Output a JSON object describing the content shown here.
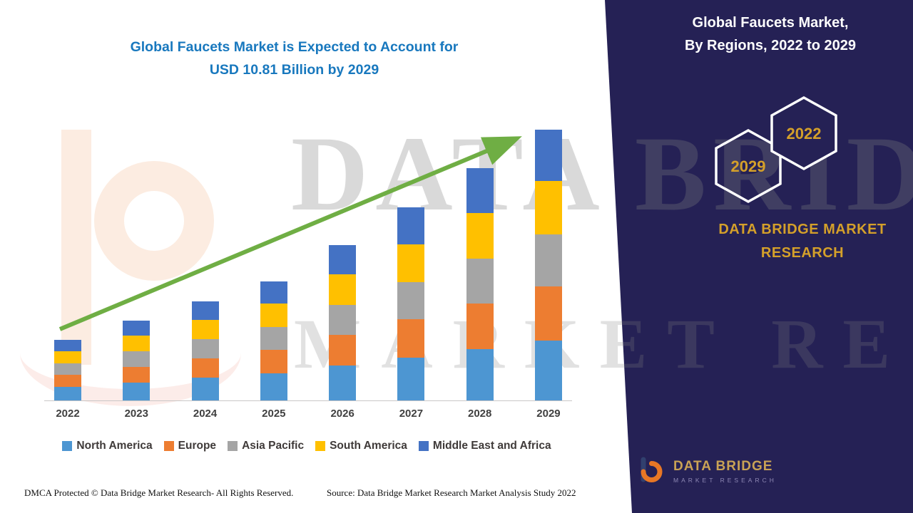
{
  "left_panel": {
    "title_line1": "Global Faucets Market is Expected to Account for",
    "title_line2": "USD 10.81 Billion by 2029",
    "footer_dmca": "DMCA Protected © Data Bridge Market Research- All Rights Reserved.",
    "footer_source": "Source: Data Bridge Market Research Market Analysis Study 2022"
  },
  "right_panel": {
    "title_line1": "Global Faucets Market,",
    "title_line2": "By Regions, 2022 to 2029",
    "hexagon_back_year": "2029",
    "hexagon_front_year": "2022",
    "brand_line1": "DATA BRIDGE MARKET",
    "brand_line2": "RESEARCH",
    "logo_name": "DATA BRIDGE",
    "logo_tagline": "MARKET RESEARCH",
    "background_color": "#252155",
    "accent_gold": "#D4A02A"
  },
  "watermark": {
    "line1": "DATA BRIDGE",
    "line2": "MARKET RESEARCH"
  },
  "chart_data": {
    "type": "bar",
    "stacked": true,
    "title": "Global Faucets Market is Expected to Account for USD 10.81 Billion by 2029",
    "value_unit": "USD Billion",
    "categories": [
      "2022",
      "2023",
      "2024",
      "2025",
      "2026",
      "2027",
      "2028",
      "2029"
    ],
    "series": [
      {
        "name": "North America",
        "color": "#4D96D2",
        "values": [
          0.55,
          0.72,
          0.9,
          1.08,
          1.4,
          1.72,
          2.05,
          2.4
        ]
      },
      {
        "name": "Europe",
        "color": "#ED7D31",
        "values": [
          0.48,
          0.63,
          0.78,
          0.94,
          1.22,
          1.52,
          1.83,
          2.14
        ]
      },
      {
        "name": "Asia Pacific",
        "color": "#A5A5A5",
        "values": [
          0.46,
          0.61,
          0.76,
          0.91,
          1.19,
          1.48,
          1.78,
          2.08
        ]
      },
      {
        "name": "South America",
        "color": "#FFC000",
        "values": [
          0.48,
          0.63,
          0.78,
          0.94,
          1.22,
          1.52,
          1.83,
          2.14
        ]
      },
      {
        "name": "Middle East and Africa",
        "color": "#4472C4",
        "values": [
          0.45,
          0.6,
          0.73,
          0.88,
          1.17,
          1.47,
          1.78,
          2.05
        ]
      }
    ],
    "totals": [
      2.42,
      3.19,
      3.95,
      4.75,
      6.2,
      7.71,
      9.27,
      10.81
    ],
    "ymax": 10.81,
    "legend_position": "bottom",
    "grid": false,
    "trend_arrow": true,
    "trend_arrow_color": "#6FAE44"
  }
}
